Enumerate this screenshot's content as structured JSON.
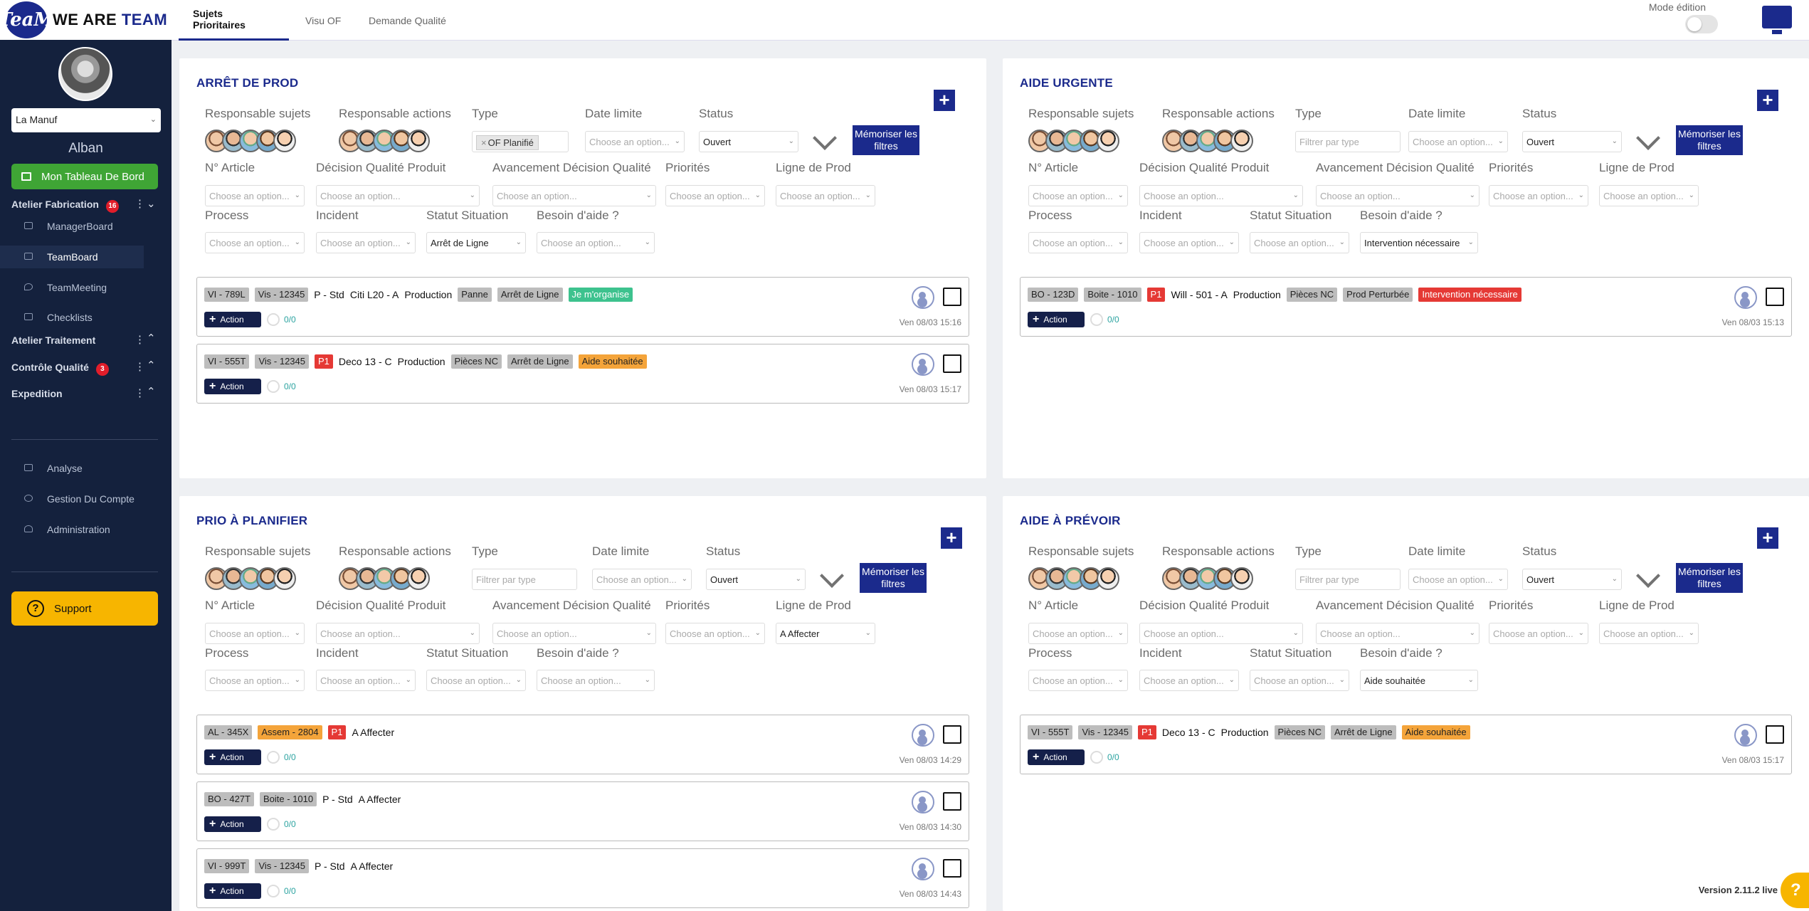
{
  "app": {
    "logo_mark": "TeaM",
    "logo_text_1": "WE ARE",
    "logo_text_2": "TEAM"
  },
  "sidebar": {
    "site": "La Manuf",
    "user": "Alban",
    "dashboard": "Mon Tableau De Bord",
    "groups": [
      {
        "label": "Atelier Fabrication",
        "badge": "16"
      },
      {
        "label": "Atelier Traitement"
      },
      {
        "label": "Contrôle Qualité",
        "badge": "3"
      },
      {
        "label": "Expedition"
      }
    ],
    "items": [
      "ManagerBoard",
      "TeamBoard",
      "TeamMeeting",
      "Checklists"
    ],
    "bottom": [
      "Analyse",
      "Gestion Du Compte",
      "Administration"
    ],
    "support": "Support"
  },
  "topbar": {
    "tabs": [
      "Sujets Prioritaires",
      "Visu OF",
      "Demande Qualité"
    ],
    "mode": "Mode édition"
  },
  "filters": {
    "labels": {
      "resp_sujets": "Responsable sujets",
      "resp_actions": "Responsable actions",
      "type": "Type",
      "date_limite": "Date limite",
      "status": "Status",
      "article": "N° Article",
      "decision": "Décision Qualité Produit",
      "avancement": "Avancement Décision Qualité",
      "priorites": "Priorités",
      "ligne": "Ligne de Prod",
      "process": "Process",
      "incident": "Incident",
      "statut": "Statut Situation",
      "besoin": "Besoin d'aide ?"
    },
    "placeholder": "Choose an option...",
    "type_placeholder": "Filtrer par type",
    "memo": "Mémoriser les filtres",
    "action": "Action"
  },
  "panels": [
    {
      "title": "ARRÊT DE PROD",
      "type_tag": "OF Planifié",
      "status": "Ouvert",
      "ligne": "",
      "statut_situation": "Arrêt de Ligne",
      "besoin": "",
      "cards": [
        {
          "chips": [
            [
              "VI - 789L",
              "g"
            ],
            [
              "Vis - 12345",
              "g"
            ],
            [
              "P - Std",
              "t"
            ],
            [
              "Citi L20 - A",
              "t"
            ],
            [
              "Production",
              "t"
            ],
            [
              "Panne",
              "g"
            ],
            [
              "Arrêt de Ligne",
              "g"
            ],
            [
              "Je m'organise",
              "teal"
            ]
          ],
          "count": "0/0",
          "date": "Ven 08/03 15:16"
        },
        {
          "chips": [
            [
              "VI - 555T",
              "g"
            ],
            [
              "Vis - 12345",
              "g"
            ],
            [
              "P1",
              "red"
            ],
            [
              "Deco 13 - C",
              "t"
            ],
            [
              "Production",
              "t"
            ],
            [
              "Pièces NC",
              "g"
            ],
            [
              "Arrêt de Ligne",
              "g"
            ],
            [
              "Aide souhaitée",
              "orange"
            ]
          ],
          "count": "0/0",
          "date": "Ven 08/03 15:17"
        }
      ]
    },
    {
      "title": "AIDE URGENTE",
      "type_tag": "",
      "status": "Ouvert",
      "ligne": "",
      "statut_situation": "",
      "besoin": "Intervention nécessaire",
      "cards": [
        {
          "chips": [
            [
              "BO - 123D",
              "g"
            ],
            [
              "Boite - 1010",
              "g"
            ],
            [
              "P1",
              "red"
            ],
            [
              "Will - 501 - A",
              "t"
            ],
            [
              "Production",
              "t"
            ],
            [
              "Pièces NC",
              "g"
            ],
            [
              "Prod Perturbée",
              "g"
            ],
            [
              "Intervention nécessaire",
              "red"
            ]
          ],
          "count": "0/0",
          "date": "Ven 08/03 15:13"
        }
      ]
    },
    {
      "title": "PRIO À PLANIFIER",
      "type_tag": "",
      "status": "Ouvert",
      "ligne": "A Affecter",
      "statut_situation": "",
      "besoin": "",
      "cards": [
        {
          "chips": [
            [
              "AL - 345X",
              "g"
            ],
            [
              "Assem - 2804",
              "orange"
            ],
            [
              "P1",
              "red"
            ],
            [
              "A Affecter",
              "t"
            ]
          ],
          "count": "0/0",
          "date": "Ven 08/03 14:29"
        },
        {
          "chips": [
            [
              "BO - 427T",
              "g"
            ],
            [
              "Boite - 1010",
              "g"
            ],
            [
              "P - Std",
              "t"
            ],
            [
              "A Affecter",
              "t"
            ]
          ],
          "count": "0/0",
          "date": "Ven 08/03 14:30"
        },
        {
          "chips": [
            [
              "VI - 999T",
              "g"
            ],
            [
              "Vis - 12345",
              "g"
            ],
            [
              "P - Std",
              "t"
            ],
            [
              "A Affecter",
              "t"
            ]
          ],
          "count": "0/0",
          "date": "Ven 08/03 14:43"
        }
      ]
    },
    {
      "title": "AIDE À PRÉVOIR",
      "type_tag": "",
      "status": "Ouvert",
      "ligne": "",
      "statut_situation": "",
      "besoin": "Aide souhaitée",
      "cards": [
        {
          "chips": [
            [
              "VI - 555T",
              "g"
            ],
            [
              "Vis - 12345",
              "g"
            ],
            [
              "P1",
              "red"
            ],
            [
              "Deco 13 - C",
              "t"
            ],
            [
              "Production",
              "t"
            ],
            [
              "Pièces NC",
              "g"
            ],
            [
              "Arrêt de Ligne",
              "g"
            ],
            [
              "Aide souhaitée",
              "orange"
            ]
          ],
          "count": "0/0",
          "date": "Ven 08/03 15:17"
        }
      ]
    }
  ],
  "footer": {
    "version": "Version 2.11.2 live",
    "help": "?"
  }
}
